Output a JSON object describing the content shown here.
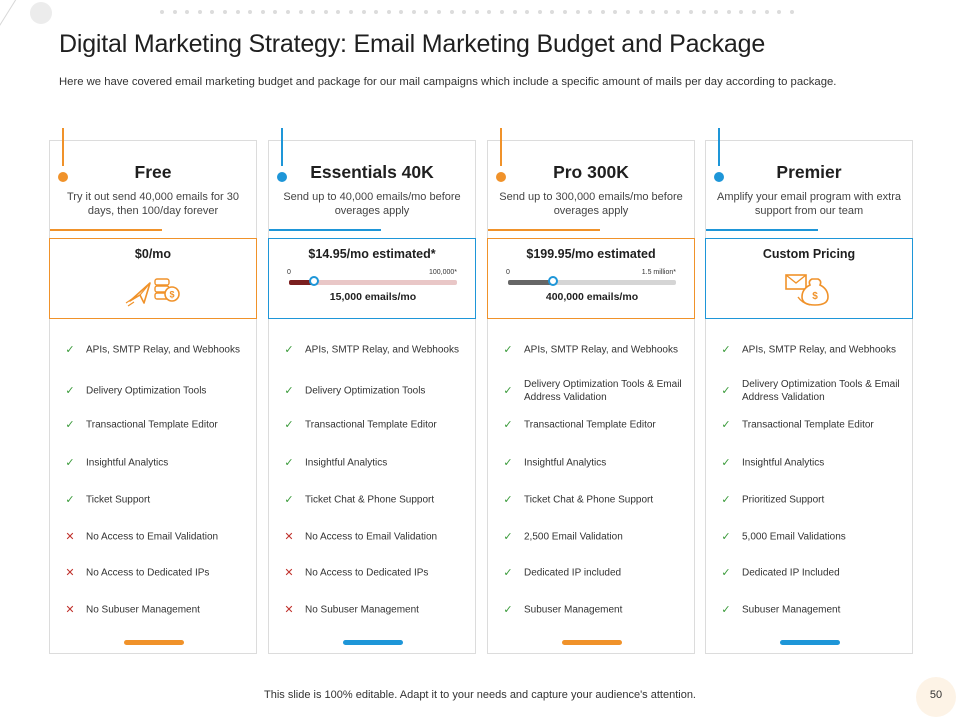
{
  "title": "Digital Marketing Strategy: Email Marketing Budget and Package",
  "subtitle": "Here we have covered email marketing budget and package for our mail campaigns which include a specific amount of mails per day according to package.",
  "colors": {
    "orange": "#f0922a",
    "blue": "#1e96d8",
    "check": "#3a9a3a",
    "cross": "#c0312c"
  },
  "plans": [
    {
      "name": "Free",
      "description": "Try it out send 40,000 emails for 30 days, then 100/day forever",
      "accent": "orange",
      "price": "$0/mo",
      "price_icon": "paper-plane-money-icon",
      "features": [
        {
          "text": "APIs, SMTP Relay, and Webhooks",
          "included": true
        },
        {
          "text": "Delivery Optimization Tools",
          "included": true
        },
        {
          "text": "Transactional Template Editor",
          "included": true
        },
        {
          "text": "Insightful Analytics",
          "included": true
        },
        {
          "text": "Ticket Support",
          "included": true
        },
        {
          "text": "No Access to Email Validation",
          "included": false
        },
        {
          "text": "No Access to Dedicated IPs",
          "included": false
        },
        {
          "text": "No Subuser Management",
          "included": false
        }
      ]
    },
    {
      "name": "Essentials 40K",
      "description": "Send up to 40,000 emails/mo before overages apply",
      "accent": "blue",
      "price": "$14.95/mo  estimated*",
      "slider": {
        "min_label": "0",
        "max_label": "100,000*",
        "value_label": "15,000 emails/mo",
        "fraction": 0.15,
        "fill_color": "#7a1f1f",
        "track_color": "#e9c7c7",
        "knob_color": "#1e96d8"
      },
      "features": [
        {
          "text": "APIs, SMTP Relay, and Webhooks",
          "included": true
        },
        {
          "text": "Delivery Optimization Tools",
          "included": true
        },
        {
          "text": "Transactional Template Editor",
          "included": true
        },
        {
          "text": "Insightful Analytics",
          "included": true
        },
        {
          "text": "Ticket Chat & Phone Support",
          "included": true
        },
        {
          "text": "No Access to Email Validation",
          "included": false
        },
        {
          "text": "No Access to Dedicated IPs",
          "included": false
        },
        {
          "text": "No Subuser Management",
          "included": false
        }
      ]
    },
    {
      "name": "Pro 300K",
      "description": "Send up to 300,000 emails/mo before overages apply",
      "accent": "orange",
      "price": "$199.95/mo  estimated",
      "slider": {
        "min_label": "0",
        "max_label": "1.5 million*",
        "value_label": "400,000 emails/mo",
        "fraction": 0.27,
        "fill_color": "#666666",
        "track_color": "#d5d5d5",
        "knob_color": "#1e96d8"
      },
      "features": [
        {
          "text": "APIs, SMTP Relay, and Webhooks",
          "included": true
        },
        {
          "text": "Delivery Optimization Tools & Email Address Validation",
          "included": true
        },
        {
          "text": "Transactional Template Editor",
          "included": true
        },
        {
          "text": "Insightful Analytics",
          "included": true
        },
        {
          "text": "Ticket Chat & Phone Support",
          "included": true
        },
        {
          "text": "2,500 Email Validation",
          "included": true
        },
        {
          "text": "Dedicated IP included",
          "included": true
        },
        {
          "text": "Subuser Management",
          "included": true
        }
      ]
    },
    {
      "name": "Premier",
      "description": "Amplify your email program with extra support from our team",
      "accent": "blue",
      "price": "Custom Pricing",
      "price_icon": "envelope-money-bag-icon",
      "features": [
        {
          "text": "APIs, SMTP Relay, and Webhooks",
          "included": true
        },
        {
          "text": "Delivery Optimization Tools & Email Address Validation",
          "included": true
        },
        {
          "text": "Transactional Template Editor",
          "included": true
        },
        {
          "text": "Insightful Analytics",
          "included": true
        },
        {
          "text": "Prioritized Support",
          "included": true
        },
        {
          "text": "5,000 Email Validations",
          "included": true
        },
        {
          "text": "Dedicated IP Included",
          "included": true
        },
        {
          "text": "Subuser Management",
          "included": true
        }
      ]
    }
  ],
  "footer": "This slide is 100% editable. Adapt it to your needs and capture your audience's attention.",
  "page_number": "50"
}
